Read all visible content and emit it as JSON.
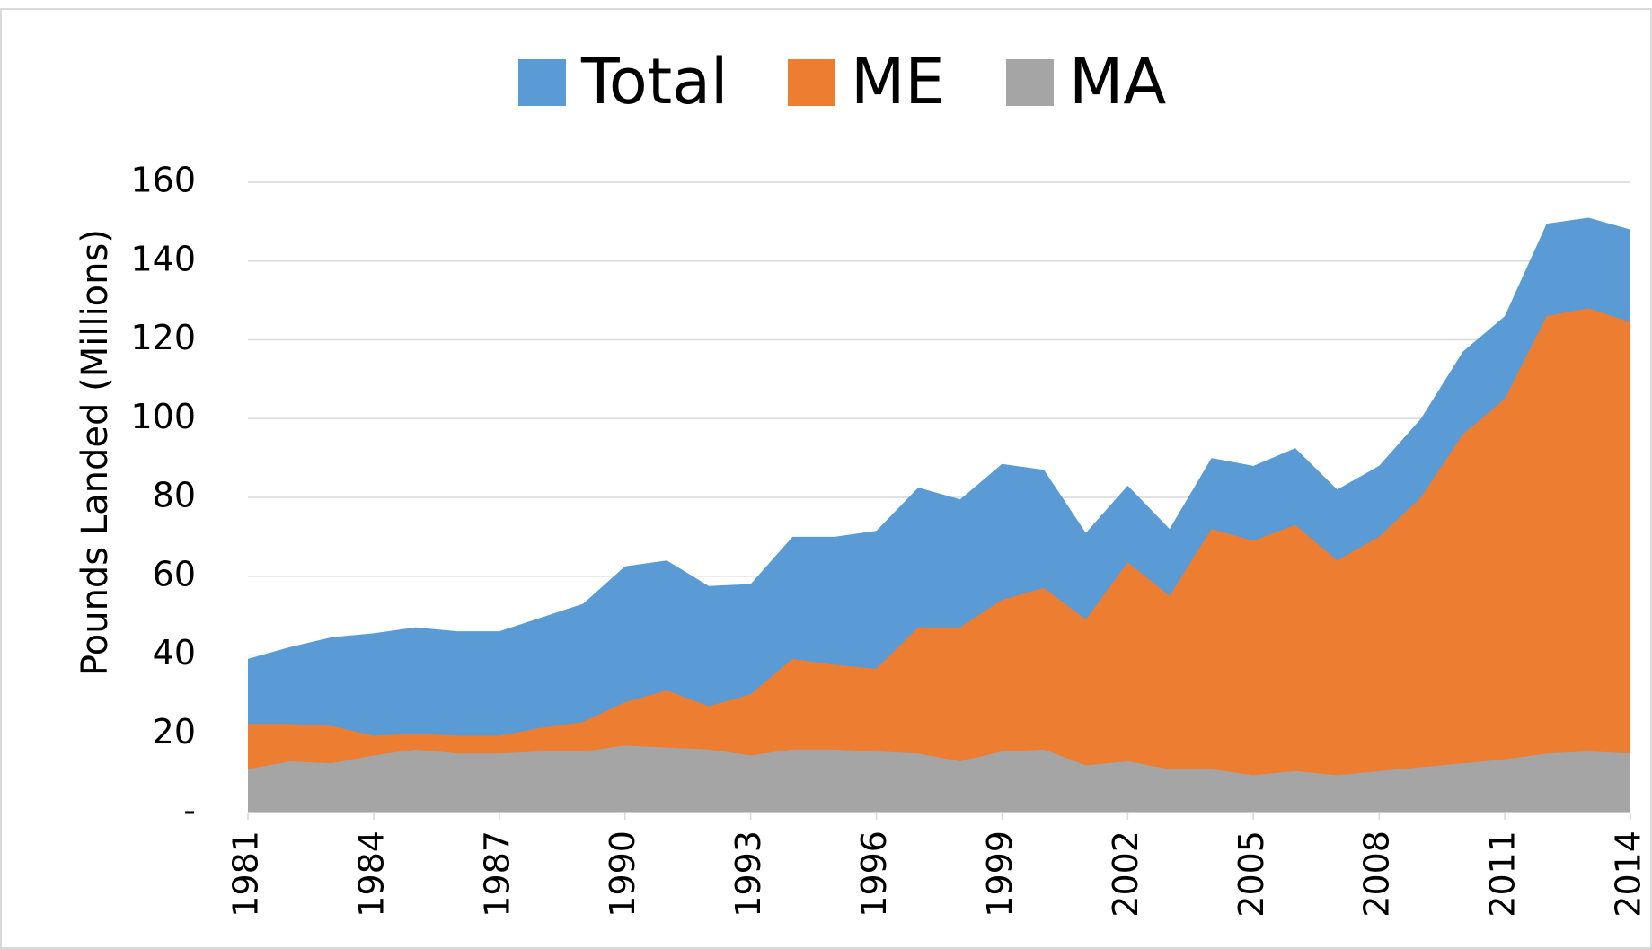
{
  "chart_data": {
    "type": "area",
    "x": [
      1981,
      1982,
      1983,
      1984,
      1985,
      1986,
      1987,
      1988,
      1989,
      1990,
      1991,
      1992,
      1993,
      1994,
      1995,
      1996,
      1997,
      1998,
      1999,
      2000,
      2001,
      2002,
      2003,
      2004,
      2005,
      2006,
      2007,
      2008,
      2009,
      2010,
      2011,
      2012,
      2013,
      2014
    ],
    "xlim": [
      1981,
      2014
    ],
    "xticks": [
      1981,
      1984,
      1987,
      1990,
      1993,
      1996,
      1999,
      2002,
      2005,
      2008,
      2011,
      2014
    ],
    "y_label": "Pounds Landed (Millions)",
    "ylim": [
      0,
      160
    ],
    "yticks": [
      {
        "value": 0,
        "label": "-"
      },
      20,
      40,
      60,
      80,
      100,
      120,
      140,
      160
    ],
    "grid": true,
    "legend": "top",
    "series": [
      {
        "name": "Total",
        "color": "#5b9bd5",
        "values": [
          39,
          42,
          44.5,
          45.5,
          47,
          46,
          46,
          49.5,
          53,
          62.5,
          64,
          57.5,
          58,
          70,
          70,
          71.5,
          82.5,
          79.5,
          88.5,
          87,
          71,
          83,
          72,
          90,
          88,
          92.5,
          82,
          88,
          100,
          117,
          126,
          149.5,
          151,
          148
        ]
      },
      {
        "name": "ME",
        "color": "#ed7d31",
        "values": [
          22.5,
          22.5,
          22,
          19.5,
          20,
          19.5,
          19.5,
          21.5,
          23,
          28,
          31,
          27,
          30,
          39,
          37.5,
          36.5,
          47,
          47,
          54,
          57,
          49,
          63.5,
          55,
          72,
          69,
          73,
          64,
          70,
          80,
          96,
          105,
          126,
          128,
          124.5
        ]
      },
      {
        "name": "MA",
        "color": "#a5a5a5",
        "values": [
          11,
          13,
          12.5,
          14.5,
          16,
          15,
          15,
          15.5,
          15.5,
          17,
          16.5,
          16,
          14.5,
          16,
          16,
          15.5,
          15,
          13,
          15.5,
          16,
          12,
          13,
          11,
          11,
          9.5,
          10.5,
          9.5,
          10.5,
          11.5,
          12.5,
          13.5,
          15,
          15.5,
          15
        ]
      }
    ]
  }
}
